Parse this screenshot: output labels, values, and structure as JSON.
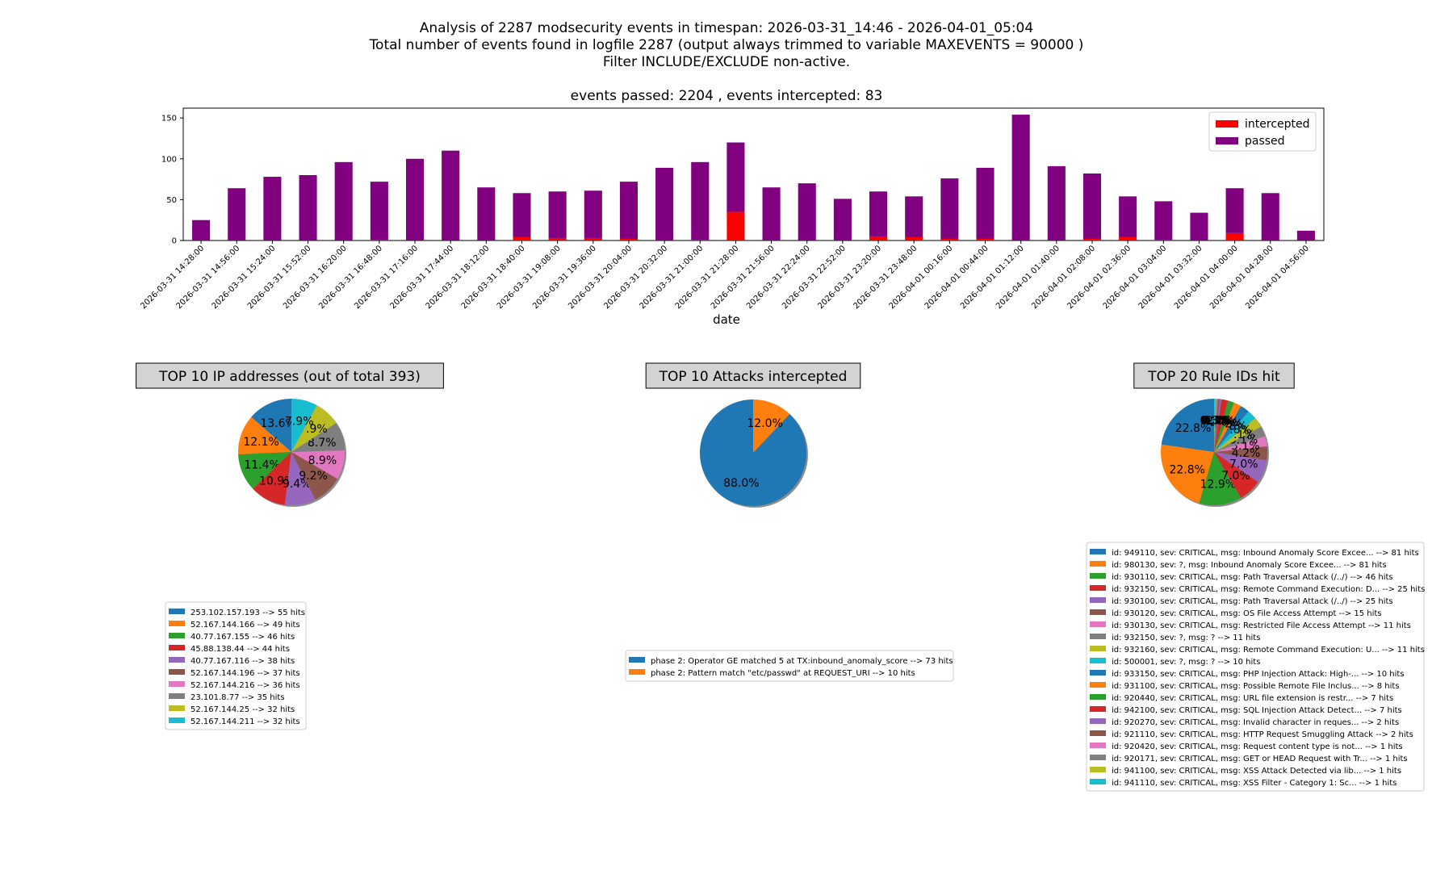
{
  "header": {
    "line1": "Analysis of 2287 modsecurity events in timespan: 2026-03-31_14:46 - 2026-04-01_05:04",
    "line2": "Total number of events found in logfile 2287 (output always trimmed to variable MAXEVENTS = 90000 )",
    "line3": "Filter INCLUDE/EXCLUDE non-active."
  },
  "chart_data": [
    {
      "type": "bar",
      "stacked": true,
      "title": "events passed: 2204 , events intercepted: 83",
      "xlabel": "date",
      "ylabel": "",
      "ylim": [
        0,
        162
      ],
      "yticks": [
        0,
        50,
        100,
        150
      ],
      "legend_position": "top-right",
      "categories": [
        "2026-03-31 14:28:00",
        "2026-03-31 14:56:00",
        "2026-03-31 15:24:00",
        "2026-03-31 15:52:00",
        "2026-03-31 16:20:00",
        "2026-03-31 16:48:00",
        "2026-03-31 17:16:00",
        "2026-03-31 17:44:00",
        "2026-03-31 18:12:00",
        "2026-03-31 18:40:00",
        "2026-03-31 19:08:00",
        "2026-03-31 19:36:00",
        "2026-03-31 20:04:00",
        "2026-03-31 20:32:00",
        "2026-03-31 21:00:00",
        "2026-03-31 21:28:00",
        "2026-03-31 21:56:00",
        "2026-03-31 22:24:00",
        "2026-03-31 22:52:00",
        "2026-03-31 23:20:00",
        "2026-03-31 23:48:00",
        "2026-04-01 00:16:00",
        "2026-04-01 00:44:00",
        "2026-04-01 01:12:00",
        "2026-04-01 01:40:00",
        "2026-04-01 02:08:00",
        "2026-04-01 02:36:00",
        "2026-04-01 03:04:00",
        "2026-04-01 03:32:00",
        "2026-04-01 04:00:00",
        "2026-04-01 04:28:00",
        "2026-04-01 04:56:00"
      ],
      "series": [
        {
          "name": "intercepted",
          "color": "#ff0000",
          "values": [
            0,
            0,
            0,
            0,
            0,
            1,
            0,
            0,
            0,
            4,
            3,
            3,
            2,
            0,
            1,
            35,
            0,
            0,
            0,
            5,
            4,
            2,
            2,
            0,
            0,
            2,
            4,
            1,
            0,
            9,
            0,
            0
          ]
        },
        {
          "name": "passed",
          "color": "#800080",
          "values": [
            25,
            64,
            78,
            80,
            96,
            71,
            100,
            110,
            65,
            54,
            57,
            58,
            70,
            89,
            95,
            85,
            65,
            70,
            51,
            55,
            50,
            74,
            87,
            154,
            91,
            80,
            50,
            47,
            34,
            55,
            58,
            12
          ]
        }
      ]
    },
    {
      "type": "pie",
      "title": "TOP 10 IP addresses (out of total 393)",
      "labels": [
        "253.102.157.193 --> 55 hits",
        "52.167.144.166 --> 49 hits",
        "40.77.167.155 --> 46 hits",
        "45.88.138.44 --> 44 hits",
        "40.77.167.116 --> 38 hits",
        "52.167.144.196 --> 37 hits",
        "52.167.144.216 --> 36 hits",
        "23.101.8.77 --> 35 hits",
        "52.167.144.25 --> 32 hits",
        "52.167.144.211 --> 32 hits"
      ],
      "values": [
        55,
        49,
        46,
        44,
        38,
        37,
        36,
        35,
        32,
        32
      ],
      "pct_labels": [
        "13.6%",
        "12.1%",
        "11.4%",
        "10.9%",
        "9.4%",
        "9.2%",
        "8.9%",
        "8.7%",
        "7.9%",
        "7.9%"
      ],
      "legend_position": "below-left"
    },
    {
      "type": "pie",
      "title": "TOP 10 Attacks intercepted",
      "labels": [
        "phase 2: Operator GE matched 5 at TX:inbound_anomaly_score --> 73 hits",
        "phase 2: Pattern match \"etc/passwd\" at REQUEST_URI --> 10 hits"
      ],
      "values": [
        73,
        10
      ],
      "pct_labels": [
        "88.0%",
        "12.0%"
      ],
      "legend_position": "below-center"
    },
    {
      "type": "pie",
      "title": "TOP 20 Rule IDs hit",
      "labels": [
        "id: 949110, sev: CRITICAL, msg: Inbound Anomaly Score Excee... --> 81 hits",
        "id: 980130, sev: ?, msg: Inbound Anomaly Score Excee... --> 81 hits",
        "id: 930110, sev: CRITICAL, msg: Path Traversal Attack (/../) --> 46 hits",
        "id: 932150, sev: CRITICAL, msg: Remote Command Execution: D... --> 25 hits",
        "id: 930100, sev: CRITICAL, msg: Path Traversal Attack (/../) --> 25 hits",
        "id: 930120, sev: CRITICAL, msg: OS File Access Attempt --> 15 hits",
        "id: 930130, sev: CRITICAL, msg: Restricted File Access Attempt --> 11 hits",
        "id: 932150, sev: ?, msg: ? --> 11 hits",
        "id: 932160, sev: CRITICAL, msg: Remote Command Execution: U... --> 11 hits",
        "id: 500001, sev: ?, msg: ? --> 10 hits",
        "id: 933150, sev: CRITICAL, msg: PHP Injection Attack: High-... --> 10 hits",
        "id: 931100, sev: CRITICAL, msg: Possible Remote File Inclus... --> 8 hits",
        "id: 920440, sev: CRITICAL, msg: URL file extension is restr... --> 7 hits",
        "id: 942100, sev: CRITICAL, msg: SQL Injection Attack Detect... --> 7 hits",
        "id: 920270, sev: CRITICAL, msg: Invalid character in reques... --> 2 hits",
        "id: 921110, sev: CRITICAL, msg: HTTP Request Smuggling Attack --> 2 hits",
        "id: 920420, sev: CRITICAL, msg: Request content type is not... --> 1 hits",
        "id: 920171, sev: CRITICAL, msg: GET or HEAD Request with Tr... --> 1 hits",
        "id: 941100, sev: CRITICAL, msg: XSS Attack Detected via lib... --> 1 hits",
        "id: 941110, sev: CRITICAL, msg: XSS Filter - Category 1: Sc... --> 1 hits"
      ],
      "values": [
        81,
        81,
        46,
        25,
        25,
        15,
        11,
        11,
        11,
        10,
        10,
        8,
        7,
        7,
        2,
        2,
        1,
        1,
        1,
        1
      ],
      "pct_labels": [
        "22.8%",
        "22.8%",
        "12.9%",
        "7.0%",
        "7.0%",
        "4.2%",
        "3.1%",
        "3.1%",
        "3.1%",
        "2.8%",
        "2.8%",
        "2.2%",
        "2.0%",
        "2.0%",
        "0.6%",
        "0.6%",
        "0.3%",
        "0.3%",
        "0.3%",
        "0.3%"
      ],
      "legend_position": "below-right"
    }
  ],
  "palette": [
    "#1f77b4",
    "#ff7f0e",
    "#2ca02c",
    "#d62728",
    "#9467bd",
    "#8c564b",
    "#e377c2",
    "#7f7f7f",
    "#bcbd22",
    "#17becf"
  ],
  "title_box_color": "#d3d3d3"
}
